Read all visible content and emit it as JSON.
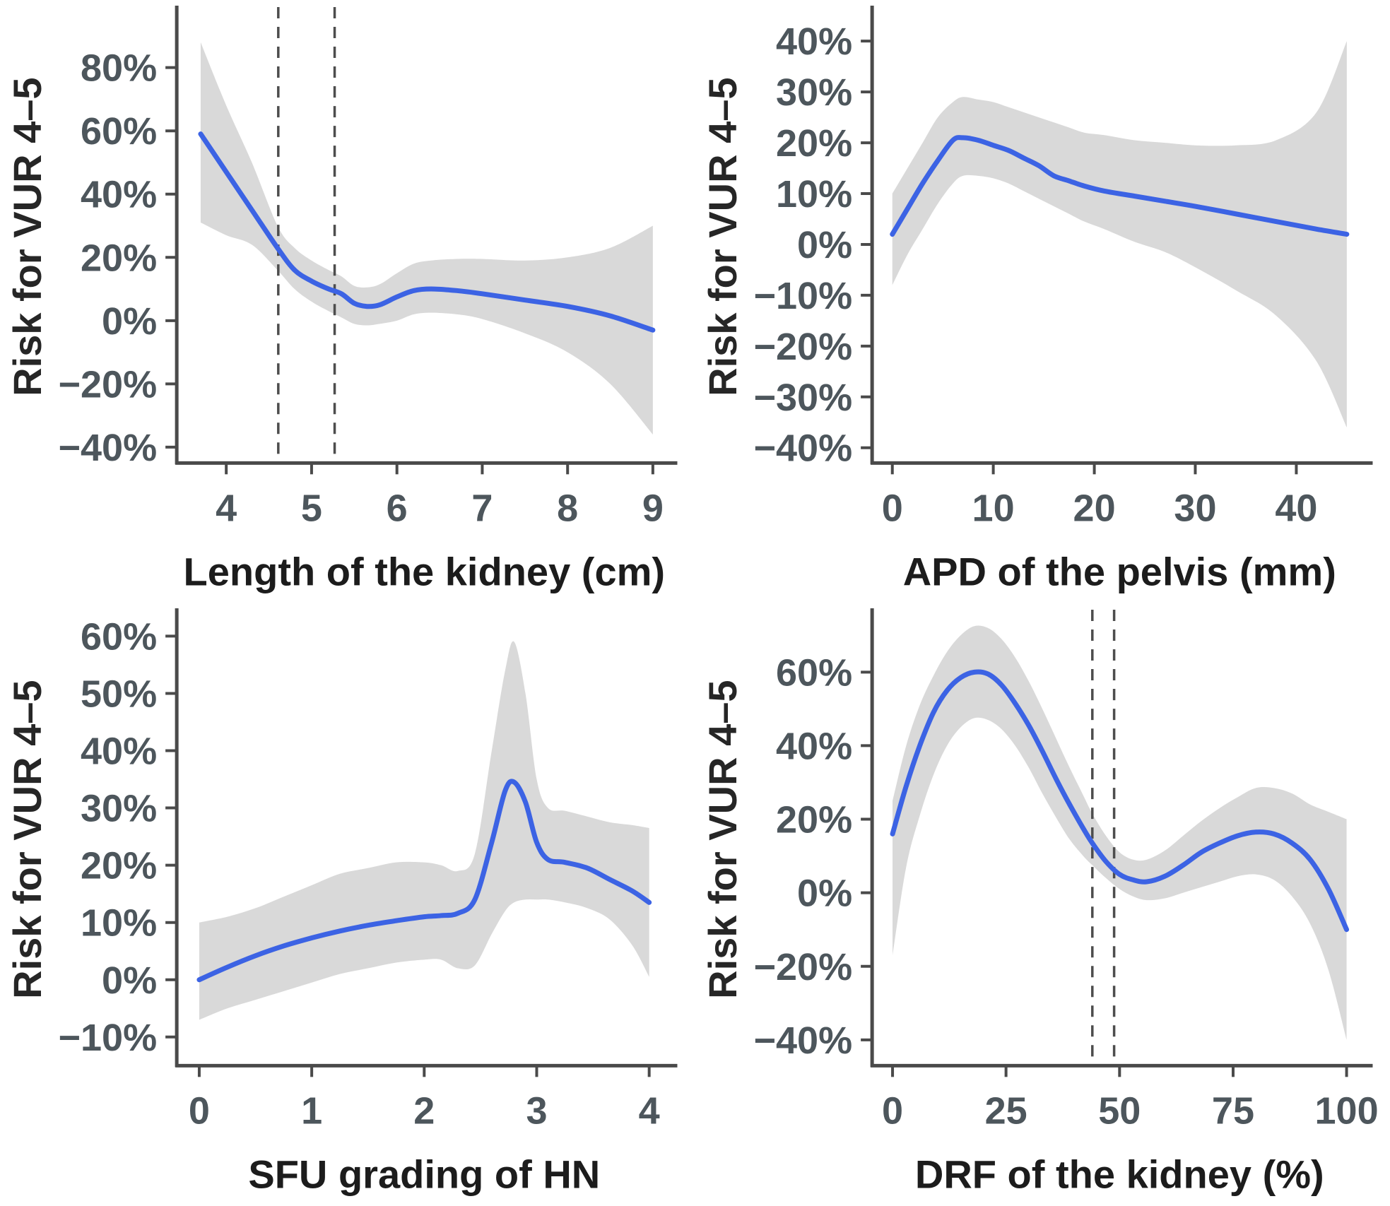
{
  "figure": {
    "background": "#ffffff",
    "shared_y_axis_label": "Risk for VUR 4–5"
  },
  "colors": {
    "curve": "#3c63e4",
    "band": "#d9d9d9",
    "axis": "#4a4a4a",
    "tick_label": "#4d565c",
    "axis_title": "#1c1c1c",
    "dashed_line": "#4d4d4d"
  },
  "chart_data": [
    {
      "id": "length-of-kidney",
      "type": "line",
      "title": "",
      "xlabel": "Length of the kidney (cm)",
      "ylabel": "Risk for VUR 4–5",
      "xlim": [
        3.42,
        9.22
      ],
      "ylim": [
        -45,
        98
      ],
      "grid": false,
      "legend": null,
      "xticks": [
        {
          "v": 4,
          "label": "4"
        },
        {
          "v": 5,
          "label": "5"
        },
        {
          "v": 6,
          "label": "6"
        },
        {
          "v": 7,
          "label": "7"
        },
        {
          "v": 8,
          "label": "8"
        },
        {
          "v": 9,
          "label": "9"
        }
      ],
      "yticks": [
        {
          "v": 80,
          "label": "80%"
        },
        {
          "v": 60,
          "label": "60%"
        },
        {
          "v": 40,
          "label": "40%"
        },
        {
          "v": 20,
          "label": "20%"
        },
        {
          "v": 0,
          "label": "0%"
        },
        {
          "v": -20,
          "label": "−20%"
        },
        {
          "v": -40,
          "label": "−40%"
        }
      ],
      "vlines": [
        4.61,
        5.27
      ],
      "curve": [
        [
          3.7,
          59
        ],
        [
          4,
          47
        ],
        [
          4.3,
          35
        ],
        [
          4.6,
          23
        ],
        [
          4.8,
          16
        ],
        [
          5,
          12.5
        ],
        [
          5.2,
          10
        ],
        [
          5.35,
          8.5
        ],
        [
          5.5,
          5.5
        ],
        [
          5.65,
          4.5
        ],
        [
          5.8,
          5
        ],
        [
          6,
          7.5
        ],
        [
          6.2,
          9.5
        ],
        [
          6.4,
          10
        ],
        [
          6.7,
          9.5
        ],
        [
          7,
          8.5
        ],
        [
          7.5,
          6.5
        ],
        [
          8,
          4.5
        ],
        [
          8.5,
          1.5
        ],
        [
          9,
          -3
        ]
      ],
      "band": [
        [
          3.7,
          31,
          88
        ],
        [
          4,
          27,
          68
        ],
        [
          4.3,
          24,
          50
        ],
        [
          4.6,
          16,
          30
        ],
        [
          4.8,
          10,
          23
        ],
        [
          5,
          6,
          19
        ],
        [
          5.2,
          3,
          16
        ],
        [
          5.35,
          1,
          14
        ],
        [
          5.5,
          -1,
          11
        ],
        [
          5.65,
          -1.5,
          10.5
        ],
        [
          5.8,
          -1,
          11.5
        ],
        [
          6,
          0,
          15
        ],
        [
          6.2,
          2,
          18
        ],
        [
          6.4,
          2.5,
          19
        ],
        [
          6.7,
          2,
          19.5
        ],
        [
          7,
          0.5,
          19.5
        ],
        [
          7.5,
          -4,
          19
        ],
        [
          8,
          -10,
          20
        ],
        [
          8.5,
          -20,
          23
        ],
        [
          9,
          -36,
          30
        ]
      ]
    },
    {
      "id": "apd-of-pelvis",
      "type": "line",
      "title": "",
      "xlabel": "APD of the pelvis (mm)",
      "ylabel": "Risk for VUR 4–5",
      "xlim": [
        -2,
        47
      ],
      "ylim": [
        -43,
        46
      ],
      "grid": false,
      "legend": null,
      "xticks": [
        {
          "v": 0,
          "label": "0"
        },
        {
          "v": 10,
          "label": "10"
        },
        {
          "v": 20,
          "label": "20"
        },
        {
          "v": 30,
          "label": "30"
        },
        {
          "v": 40,
          "label": "40"
        }
      ],
      "yticks": [
        {
          "v": 40,
          "label": "40%"
        },
        {
          "v": 30,
          "label": "30%"
        },
        {
          "v": 20,
          "label": "20%"
        },
        {
          "v": 10,
          "label": "10%"
        },
        {
          "v": 0,
          "label": "0%"
        },
        {
          "v": -10,
          "label": "−10%"
        },
        {
          "v": -20,
          "label": "−20%"
        },
        {
          "v": -30,
          "label": "−30%"
        },
        {
          "v": -40,
          "label": "−40%"
        }
      ],
      "vlines": [],
      "curve": [
        [
          0,
          2
        ],
        [
          1.5,
          7
        ],
        [
          3,
          12
        ],
        [
          4.5,
          16.5
        ],
        [
          6,
          20.5
        ],
        [
          7,
          21
        ],
        [
          8.5,
          20.5
        ],
        [
          10,
          19.5
        ],
        [
          11.5,
          18.5
        ],
        [
          13,
          17
        ],
        [
          14.5,
          15.5
        ],
        [
          16,
          13.5
        ],
        [
          17.5,
          12.5
        ],
        [
          19,
          11.5
        ],
        [
          21,
          10.5
        ],
        [
          24,
          9.5
        ],
        [
          27,
          8.5
        ],
        [
          30,
          7.5
        ],
        [
          34,
          6
        ],
        [
          38,
          4.5
        ],
        [
          42,
          3
        ],
        [
          45,
          2
        ]
      ],
      "band": [
        [
          0,
          -8,
          10
        ],
        [
          1.5,
          -2,
          15
        ],
        [
          3,
          3,
          20
        ],
        [
          4.5,
          8,
          25
        ],
        [
          6,
          12,
          28
        ],
        [
          7,
          13.5,
          29
        ],
        [
          8.5,
          13.5,
          28.5
        ],
        [
          10,
          13,
          28
        ],
        [
          11.5,
          12,
          27
        ],
        [
          13,
          10.5,
          26
        ],
        [
          14.5,
          9,
          25
        ],
        [
          16,
          7.5,
          24
        ],
        [
          17.5,
          6,
          23
        ],
        [
          19,
          4.5,
          22
        ],
        [
          21,
          3,
          21.5
        ],
        [
          24,
          0.5,
          20.5
        ],
        [
          27,
          -1.5,
          20
        ],
        [
          30,
          -4.5,
          19.5
        ],
        [
          34,
          -9,
          19.5
        ],
        [
          38,
          -14,
          20.5
        ],
        [
          42,
          -23,
          26
        ],
        [
          45,
          -36,
          40
        ]
      ]
    },
    {
      "id": "sfu-grading",
      "type": "line",
      "title": "",
      "xlabel": "SFU grading of HN",
      "ylabel": "Risk for VUR 4–5",
      "xlim": [
        -0.2,
        4.2
      ],
      "ylim": [
        -15,
        64
      ],
      "grid": false,
      "legend": null,
      "xticks": [
        {
          "v": 0,
          "label": "0"
        },
        {
          "v": 1,
          "label": "1"
        },
        {
          "v": 2,
          "label": "2"
        },
        {
          "v": 3,
          "label": "3"
        },
        {
          "v": 4,
          "label": "4"
        }
      ],
      "yticks": [
        {
          "v": 60,
          "label": "60%"
        },
        {
          "v": 50,
          "label": "50%"
        },
        {
          "v": 40,
          "label": "40%"
        },
        {
          "v": 30,
          "label": "30%"
        },
        {
          "v": 20,
          "label": "20%"
        },
        {
          "v": 10,
          "label": "10%"
        },
        {
          "v": 0,
          "label": "0%"
        },
        {
          "v": -10,
          "label": "−10%"
        }
      ],
      "vlines": [],
      "curve": [
        [
          0,
          0
        ],
        [
          0.25,
          2.2
        ],
        [
          0.5,
          4.2
        ],
        [
          0.75,
          5.9
        ],
        [
          1,
          7.3
        ],
        [
          1.25,
          8.5
        ],
        [
          1.5,
          9.5
        ],
        [
          1.75,
          10.3
        ],
        [
          2,
          11
        ],
        [
          2.15,
          11.2
        ],
        [
          2.3,
          11.6
        ],
        [
          2.45,
          14
        ],
        [
          2.6,
          24
        ],
        [
          2.72,
          33
        ],
        [
          2.8,
          34.5
        ],
        [
          2.9,
          31
        ],
        [
          3,
          24
        ],
        [
          3.1,
          21
        ],
        [
          3.25,
          20.5
        ],
        [
          3.45,
          19.5
        ],
        [
          3.65,
          17.5
        ],
        [
          3.85,
          15.5
        ],
        [
          4,
          13.5
        ]
      ],
      "band": [
        [
          0,
          -7,
          10
        ],
        [
          0.25,
          -5,
          11
        ],
        [
          0.5,
          -3.5,
          12.5
        ],
        [
          0.75,
          -2,
          14.5
        ],
        [
          1,
          -0.5,
          16.5
        ],
        [
          1.25,
          1,
          18.5
        ],
        [
          1.5,
          2,
          19.5
        ],
        [
          1.75,
          3,
          20.5
        ],
        [
          2,
          3.5,
          20.5
        ],
        [
          2.15,
          3.5,
          20
        ],
        [
          2.3,
          2,
          19
        ],
        [
          2.45,
          2.5,
          22
        ],
        [
          2.6,
          8,
          40
        ],
        [
          2.72,
          12,
          54
        ],
        [
          2.8,
          13.5,
          59
        ],
        [
          2.9,
          14,
          50
        ],
        [
          3,
          14,
          35
        ],
        [
          3.1,
          14,
          30
        ],
        [
          3.25,
          13.5,
          29.5
        ],
        [
          3.45,
          12.5,
          28.5
        ],
        [
          3.65,
          10.5,
          27.5
        ],
        [
          3.85,
          6,
          27
        ],
        [
          4,
          0.5,
          26.5
        ]
      ]
    },
    {
      "id": "drf-of-kidney",
      "type": "line",
      "title": "",
      "xlabel": "DRF of the kidney (%)",
      "ylabel": "Risk for VUR 4–5",
      "xlim": [
        -4.5,
        104.5
      ],
      "ylim": [
        -47,
        76
      ],
      "grid": false,
      "legend": null,
      "xticks": [
        {
          "v": 0,
          "label": "0"
        },
        {
          "v": 25,
          "label": "25"
        },
        {
          "v": 50,
          "label": "50"
        },
        {
          "v": 75,
          "label": "75"
        },
        {
          "v": 100,
          "label": "100"
        }
      ],
      "yticks": [
        {
          "v": 60,
          "label": "60%"
        },
        {
          "v": 40,
          "label": "40%"
        },
        {
          "v": 20,
          "label": "20%"
        },
        {
          "v": 0,
          "label": "0%"
        },
        {
          "v": -20,
          "label": "−20%"
        },
        {
          "v": -40,
          "label": "−40%"
        }
      ],
      "vlines": [
        44,
        48.8
      ],
      "curve": [
        [
          0,
          16
        ],
        [
          3,
          29
        ],
        [
          6,
          40
        ],
        [
          9,
          49
        ],
        [
          12,
          55
        ],
        [
          15,
          58.5
        ],
        [
          18,
          60
        ],
        [
          21,
          59.5
        ],
        [
          24,
          56.5
        ],
        [
          27,
          51.5
        ],
        [
          30,
          45.5
        ],
        [
          33,
          38.5
        ],
        [
          36,
          31
        ],
        [
          39,
          24
        ],
        [
          42,
          17.5
        ],
        [
          44,
          13.5
        ],
        [
          47,
          8.5
        ],
        [
          50,
          5
        ],
        [
          53,
          3.5
        ],
        [
          56,
          3
        ],
        [
          60,
          4.5
        ],
        [
          64,
          7.5
        ],
        [
          68,
          11
        ],
        [
          72,
          13.5
        ],
        [
          76,
          15.5
        ],
        [
          80,
          16.5
        ],
        [
          84,
          16
        ],
        [
          88,
          13.5
        ],
        [
          92,
          9
        ],
        [
          96,
          1
        ],
        [
          100,
          -10
        ]
      ],
      "band": [
        [
          0,
          -17,
          25
        ],
        [
          3,
          7,
          40
        ],
        [
          6,
          21,
          51
        ],
        [
          9,
          32,
          59
        ],
        [
          12,
          40,
          65.5
        ],
        [
          15,
          45,
          70
        ],
        [
          18,
          47.5,
          72.5
        ],
        [
          21,
          47,
          72
        ],
        [
          24,
          44.5,
          69
        ],
        [
          27,
          40,
          64
        ],
        [
          30,
          34,
          57.5
        ],
        [
          33,
          27,
          50
        ],
        [
          36,
          20.5,
          42
        ],
        [
          39,
          14.5,
          34
        ],
        [
          42,
          10,
          26.5
        ],
        [
          44,
          7.5,
          21.5
        ],
        [
          47,
          4,
          15.5
        ],
        [
          50,
          1,
          11
        ],
        [
          53,
          -1,
          9
        ],
        [
          56,
          -2,
          9
        ],
        [
          60,
          -1.5,
          11.5
        ],
        [
          64,
          0,
          15.5
        ],
        [
          68,
          1.5,
          19.5
        ],
        [
          72,
          3,
          23
        ],
        [
          76,
          4.5,
          26
        ],
        [
          80,
          5,
          28.5
        ],
        [
          84,
          3.5,
          28.5
        ],
        [
          88,
          -1,
          27
        ],
        [
          92,
          -8.5,
          24
        ],
        [
          96,
          -21,
          22
        ],
        [
          100,
          -40,
          20
        ]
      ]
    }
  ]
}
